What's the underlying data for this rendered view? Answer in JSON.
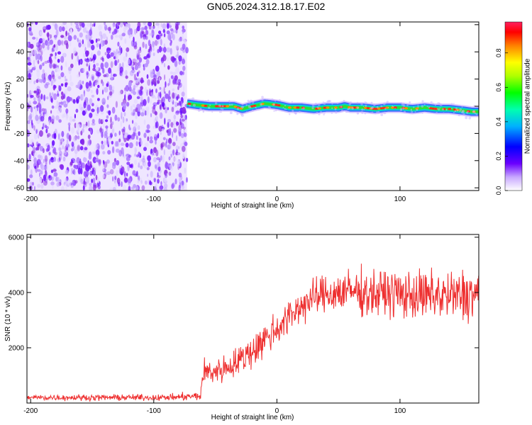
{
  "title": "GN05.2024.312.18.17.E02",
  "chart_data": [
    {
      "type": "heatmap",
      "xlabel": "Height of straight line (km)",
      "ylabel": "Frequency (Hz)",
      "xlim": [
        -203,
        164
      ],
      "ylim": [
        -62,
        62
      ],
      "xticks": [
        -200,
        -100,
        0,
        100
      ],
      "yticks": [
        60,
        40,
        20,
        0,
        -20,
        -40,
        -60
      ],
      "noise_region_x": [
        -203,
        -73
      ],
      "ridge": {
        "x": [
          -73,
          -65,
          -55,
          -45,
          -35,
          -28,
          -20,
          -10,
          0,
          10,
          20,
          30,
          40,
          50,
          55,
          60,
          70,
          80,
          90,
          100,
          110,
          120,
          130,
          140,
          150,
          158,
          164
        ],
        "freq": [
          2,
          1,
          0,
          0,
          0,
          -2,
          0,
          2,
          1,
          -1,
          -1,
          -2,
          -1,
          -1,
          0,
          -1,
          -1,
          -2,
          -1,
          -1,
          -2,
          -1,
          -2,
          -2,
          -3,
          -4,
          -4
        ]
      },
      "colorbar": {
        "label": "Normalized spectral amplitude",
        "ticks": [
          "0.0",
          "0.2",
          "0.4",
          "0.6",
          "0.8"
        ],
        "range": [
          0,
          0.98
        ]
      },
      "grid": false
    },
    {
      "type": "line",
      "xlabel": "Height of straight line (km)",
      "ylabel": "SNR (10 * v/v)",
      "xlim": [
        -203,
        164
      ],
      "ylim": [
        0,
        6100
      ],
      "xticks": [
        -200,
        -100,
        0,
        100
      ],
      "yticks": [
        2000,
        4000,
        6000
      ],
      "series": [
        {
          "color": "#ee3030",
          "x": [
            -203,
            -180,
            -150,
            -120,
            -90,
            -62,
            -60,
            -50,
            -40,
            -30,
            -20,
            -10,
            0,
            10,
            20,
            30,
            40,
            50,
            60,
            70,
            80,
            90,
            100,
            110,
            120,
            130,
            140,
            150,
            164
          ],
          "values": [
            200,
            200,
            200,
            200,
            200,
            250,
            1100,
            1150,
            1300,
            1550,
            1900,
            2300,
            2700,
            3100,
            3550,
            3800,
            3950,
            4000,
            4050,
            4000,
            3950,
            4000,
            3950,
            3900,
            3850,
            3900,
            3850,
            3900,
            3950
          ],
          "spread": [
            100,
            100,
            100,
            100,
            100,
            150,
            450,
            450,
            450,
            500,
            600,
            600,
            600,
            600,
            600,
            600,
            650,
            700,
            700,
            750,
            750,
            800,
            800,
            800,
            850,
            850,
            850,
            900,
            900
          ]
        }
      ],
      "grid": false
    }
  ]
}
